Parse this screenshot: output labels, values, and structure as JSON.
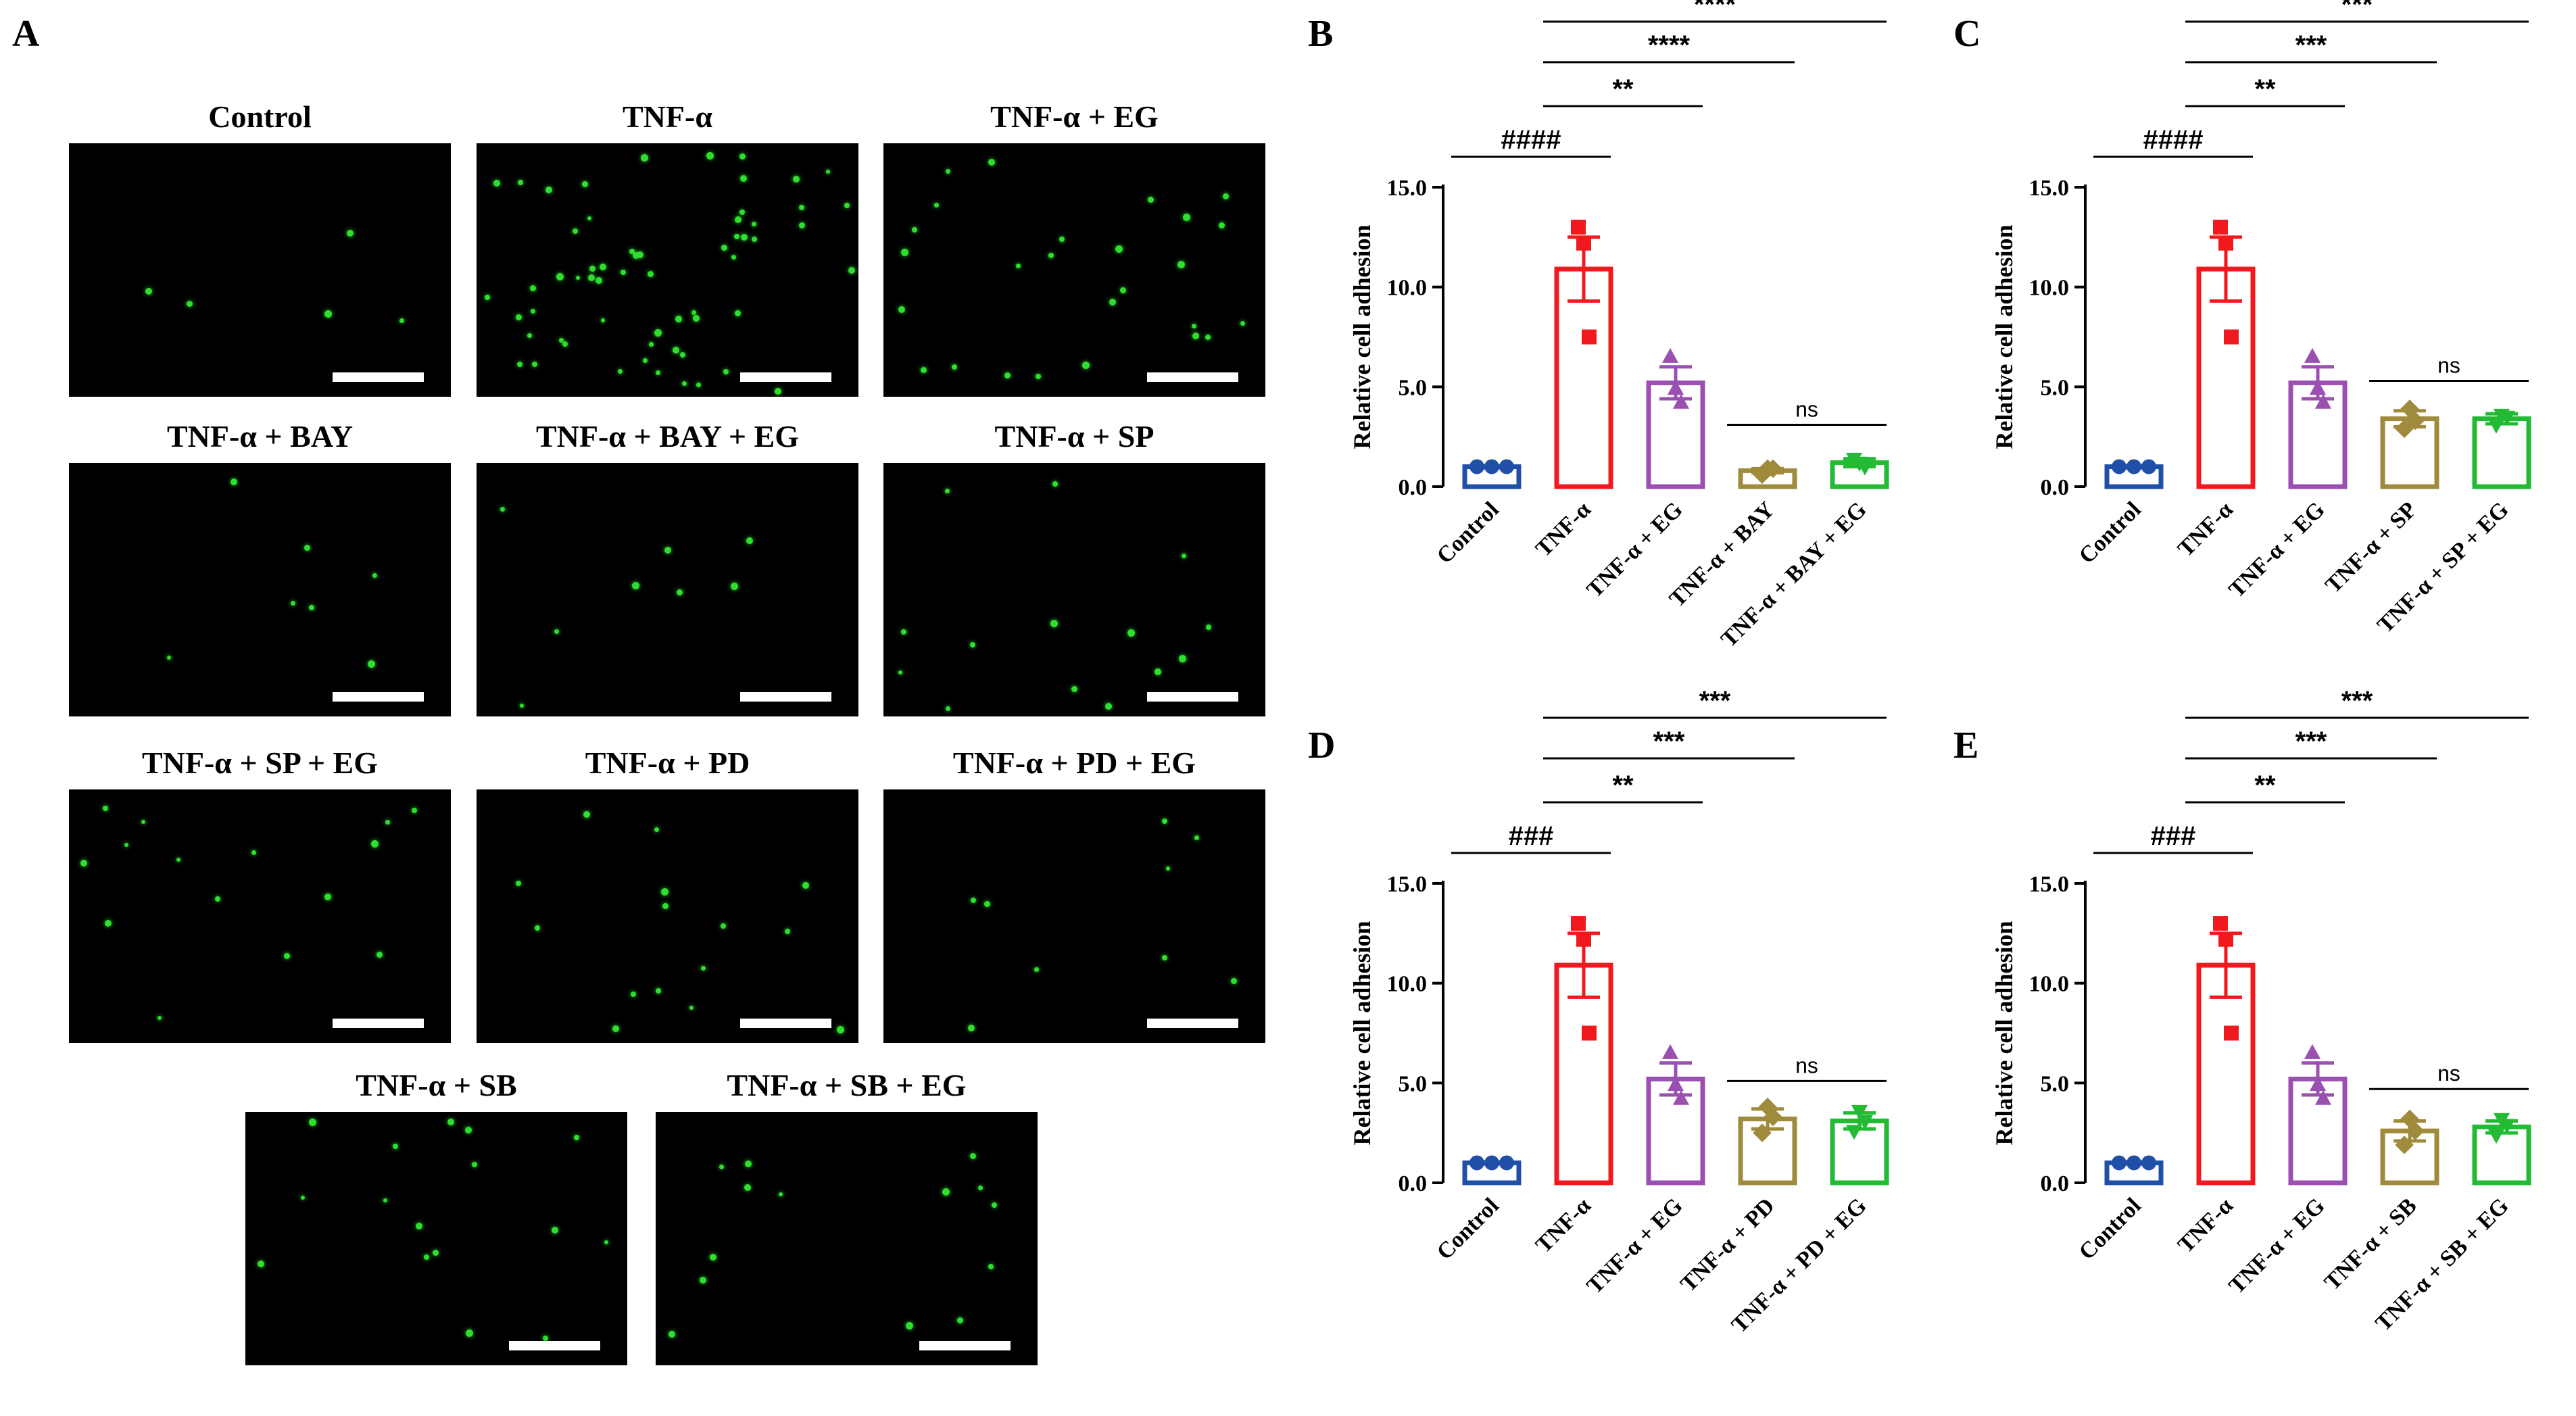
{
  "panels": {
    "A": "A",
    "B": "B",
    "C": "C",
    "D": "D",
    "E": "E"
  },
  "micrographs": [
    {
      "title": "Control",
      "cells": 5
    },
    {
      "title": "TNF-α",
      "cells": 60
    },
    {
      "title": "TNF-α + EG",
      "cells": 26
    },
    {
      "title": "TNF-α + BAY",
      "cells": 7
    },
    {
      "title": "TNF-α + BAY + EG",
      "cells": 8
    },
    {
      "title": "TNF-α + SP",
      "cells": 14
    },
    {
      "title": "TNF-α + SP + EG",
      "cells": 15
    },
    {
      "title": "TNF-α + PD",
      "cells": 15
    },
    {
      "title": "TNF-α + PD + EG",
      "cells": 9
    },
    {
      "title": "TNF-α + SB",
      "cells": 16
    },
    {
      "title": "TNF-α + SB + EG",
      "cells": 14
    }
  ],
  "colors": {
    "control": "#1f4fa6",
    "tnf": "#f0191e",
    "eg": "#9b4fb0",
    "inhibitor": "#a08a3c",
    "inhibitor_eg": "#22bb33",
    "cell_fluorescence": "#2ee02e"
  },
  "chart_data": [
    {
      "panel": "B",
      "type": "bar",
      "ylabel": "Relative cell adhesion",
      "ylim": [
        0,
        15
      ],
      "yticks": [
        "0.0",
        "5.0",
        "10.0",
        "15.0"
      ],
      "categories": [
        "Control",
        "TNF-α",
        "TNF-α + EG",
        "TNF-α + BAY",
        "TNF-α + BAY + EG"
      ],
      "values": [
        1.0,
        10.9,
        5.2,
        0.8,
        1.2
      ],
      "sem": [
        0.05,
        1.6,
        0.8,
        0.1,
        0.2
      ],
      "points": [
        [
          1.0,
          1.0,
          1.0
        ],
        [
          13.0,
          7.5,
          12.2
        ],
        [
          6.5,
          4.2,
          4.9
        ],
        [
          0.6,
          0.9,
          0.9
        ],
        [
          1.4,
          1.0,
          1.2
        ]
      ],
      "markers": [
        "circle",
        "square",
        "triangle",
        "diamond",
        "triangle-down"
      ],
      "significance": [
        {
          "from": 0,
          "to": 1,
          "label": "####"
        },
        {
          "from": 1,
          "to": 2,
          "label": "**"
        },
        {
          "from": 1,
          "to": 3,
          "label": "****"
        },
        {
          "from": 1,
          "to": 4,
          "label": "****"
        },
        {
          "from": 3,
          "to": 4,
          "label": "ns"
        }
      ]
    },
    {
      "panel": "C",
      "type": "bar",
      "ylabel": "Relative cell adhesion",
      "ylim": [
        0,
        15
      ],
      "yticks": [
        "0.0",
        "5.0",
        "10.0",
        "15.0"
      ],
      "categories": [
        "Control",
        "TNF-α",
        "TNF-α + EG",
        "TNF-α + SP",
        "TNF-α + SP + EG"
      ],
      "values": [
        1.0,
        10.9,
        5.2,
        3.4,
        3.4
      ],
      "sem": [
        0.05,
        1.6,
        0.8,
        0.4,
        0.25
      ],
      "points": [
        [
          1.0,
          1.0,
          1.0
        ],
        [
          13.0,
          7.5,
          12.2
        ],
        [
          6.5,
          4.2,
          4.9
        ],
        [
          2.9,
          3.3,
          3.9
        ],
        [
          3.1,
          3.5,
          3.6
        ]
      ],
      "markers": [
        "circle",
        "square",
        "triangle",
        "diamond",
        "triangle-down"
      ],
      "significance": [
        {
          "from": 0,
          "to": 1,
          "label": "####"
        },
        {
          "from": 1,
          "to": 2,
          "label": "**"
        },
        {
          "from": 1,
          "to": 3,
          "label": "***"
        },
        {
          "from": 1,
          "to": 4,
          "label": "***"
        },
        {
          "from": 3,
          "to": 4,
          "label": "ns"
        }
      ]
    },
    {
      "panel": "D",
      "type": "bar",
      "ylabel": "Relative cell adhesion",
      "ylim": [
        0,
        15
      ],
      "yticks": [
        "0.0",
        "5.0",
        "10.0",
        "15.0"
      ],
      "categories": [
        "Control",
        "TNF-α",
        "TNF-α + EG",
        "TNF-α + PD",
        "TNF-α + PD + EG"
      ],
      "values": [
        1.0,
        10.9,
        5.2,
        3.2,
        3.1
      ],
      "sem": [
        0.05,
        1.6,
        0.8,
        0.5,
        0.4
      ],
      "points": [
        [
          1.0,
          1.0,
          1.0
        ],
        [
          13.0,
          7.5,
          12.2
        ],
        [
          6.5,
          4.2,
          4.9
        ],
        [
          2.5,
          3.3,
          3.8
        ],
        [
          2.6,
          3.1,
          3.6
        ]
      ],
      "markers": [
        "circle",
        "square",
        "triangle",
        "diamond",
        "triangle-down"
      ],
      "significance": [
        {
          "from": 0,
          "to": 1,
          "label": "###"
        },
        {
          "from": 1,
          "to": 2,
          "label": "**"
        },
        {
          "from": 1,
          "to": 3,
          "label": "***"
        },
        {
          "from": 1,
          "to": 4,
          "label": "***"
        },
        {
          "from": 3,
          "to": 4,
          "label": "ns"
        }
      ]
    },
    {
      "panel": "E",
      "type": "bar",
      "ylabel": "Relative cell adhesion",
      "ylim": [
        0,
        15
      ],
      "yticks": [
        "0.0",
        "5.0",
        "10.0",
        "15.0"
      ],
      "categories": [
        "Control",
        "TNF-α",
        "TNF-α + EG",
        "TNF-α + SB",
        "TNF-α + SB + EG"
      ],
      "values": [
        1.0,
        10.9,
        5.2,
        2.6,
        2.8
      ],
      "sem": [
        0.05,
        1.6,
        0.8,
        0.5,
        0.3
      ],
      "points": [
        [
          1.0,
          1.0,
          1.0
        ],
        [
          13.0,
          7.5,
          12.2
        ],
        [
          6.5,
          4.2,
          4.9
        ],
        [
          1.9,
          2.6,
          3.2
        ],
        [
          2.4,
          2.9,
          3.2
        ]
      ],
      "markers": [
        "circle",
        "square",
        "triangle",
        "diamond",
        "triangle-down"
      ],
      "significance": [
        {
          "from": 0,
          "to": 1,
          "label": "###"
        },
        {
          "from": 1,
          "to": 2,
          "label": "**"
        },
        {
          "from": 1,
          "to": 3,
          "label": "***"
        },
        {
          "from": 1,
          "to": 4,
          "label": "***"
        },
        {
          "from": 3,
          "to": 4,
          "label": "ns"
        }
      ]
    }
  ]
}
